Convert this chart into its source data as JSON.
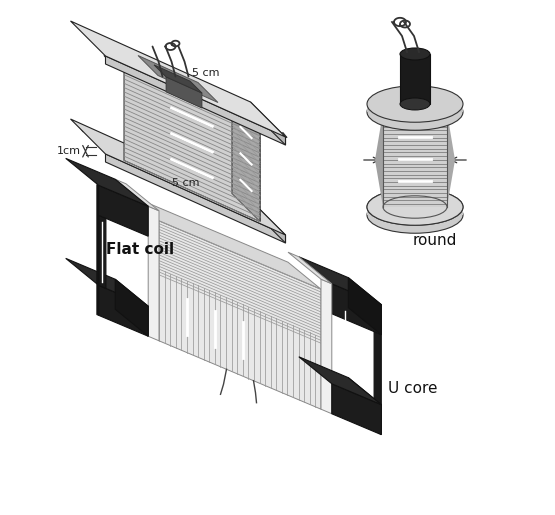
{
  "background_color": "#ffffff",
  "labels": {
    "flat_coil": "Flat coil",
    "round": "round",
    "u_core": "U core",
    "dim_5cm_top": "5 cm",
    "dim_5cm_bot": "5 cm",
    "dim_1cm": "1cm"
  },
  "figsize": [
    5.55,
    5.15
  ],
  "dpi": 100
}
